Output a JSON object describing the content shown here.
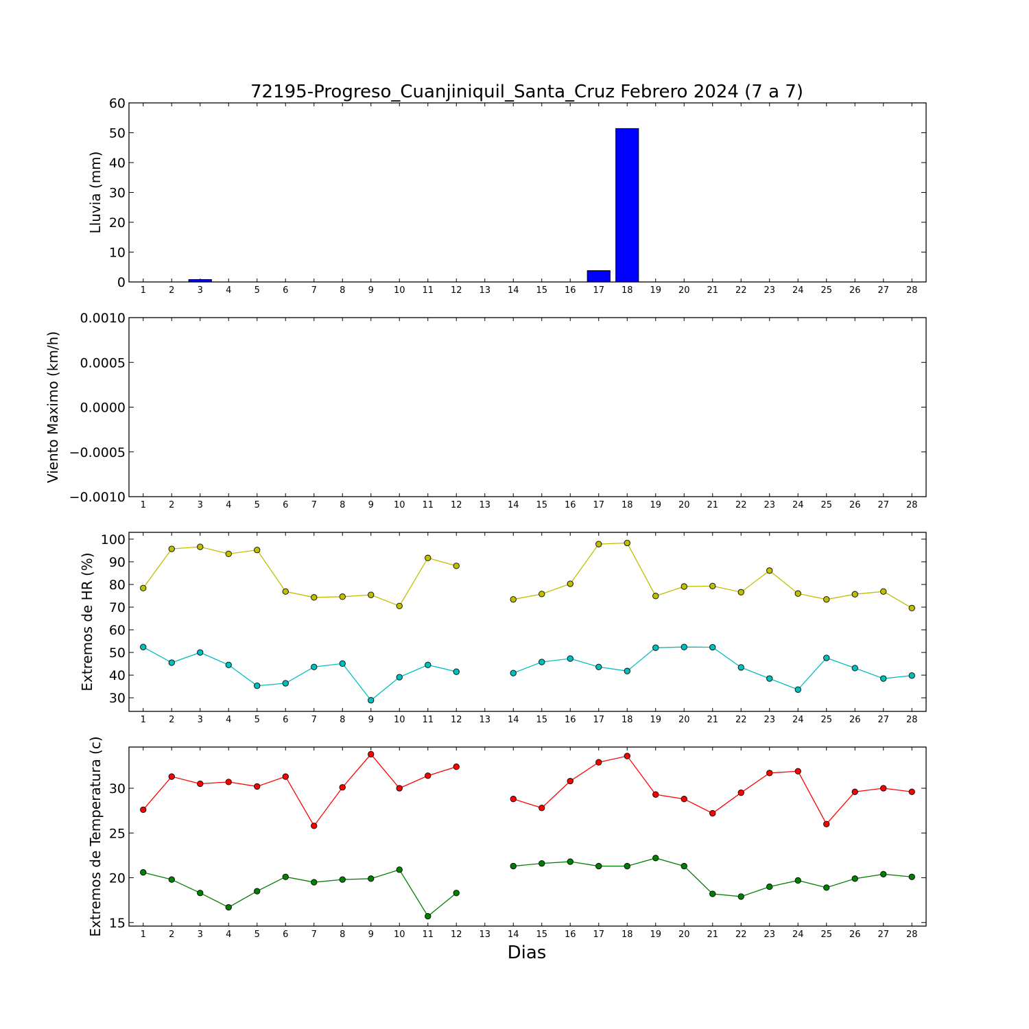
{
  "title": "72195-Progreso_Cuanjiniquil_Santa_Cruz Febrero 2024  (7 a 7)",
  "xlabel": "Dias",
  "chart_data": [
    {
      "type": "bar",
      "ylabel": "Lluvia (mm)",
      "ylim": [
        0,
        60
      ],
      "yticks": [
        "0",
        "10",
        "20",
        "30",
        "40",
        "50",
        "60"
      ],
      "categories": [
        "1",
        "2",
        "3",
        "4",
        "5",
        "6",
        "7",
        "8",
        "9",
        "10",
        "11",
        "12",
        "13",
        "14",
        "15",
        "16",
        "17",
        "18",
        "19",
        "20",
        "21",
        "22",
        "23",
        "24",
        "25",
        "26",
        "27",
        "28"
      ],
      "series": [
        {
          "color": "#0000ff",
          "values": [
            0,
            0,
            0.8,
            0,
            0,
            0,
            0,
            0,
            0,
            0,
            0,
            0,
            0,
            0,
            0,
            0,
            3.8,
            51.4,
            0,
            0,
            0,
            0,
            0,
            0,
            0,
            0,
            0,
            0
          ]
        }
      ],
      "grid": false
    },
    {
      "type": "line",
      "ylabel": "Viento Maximo (km/h)",
      "ylim": [
        -0.001,
        0.001
      ],
      "yticks": [
        "−0.0010",
        "−0.0005",
        "0.0000",
        "0.0005",
        "0.0010"
      ],
      "categories": [
        "1",
        "2",
        "3",
        "4",
        "5",
        "6",
        "7",
        "8",
        "9",
        "10",
        "11",
        "12",
        "13",
        "14",
        "15",
        "16",
        "17",
        "18",
        "19",
        "20",
        "21",
        "22",
        "23",
        "24",
        "25",
        "26",
        "27",
        "28"
      ],
      "series": [],
      "grid": false
    },
    {
      "type": "line",
      "ylabel": "Extremos de HR (%)",
      "ylim": [
        24,
        103
      ],
      "yticks": [
        "30",
        "40",
        "50",
        "60",
        "70",
        "80",
        "90",
        "100"
      ],
      "categories": [
        "1",
        "2",
        "3",
        "4",
        "5",
        "6",
        "7",
        "8",
        "9",
        "10",
        "11",
        "12",
        "13",
        "14",
        "15",
        "16",
        "17",
        "18",
        "19",
        "20",
        "21",
        "22",
        "23",
        "24",
        "25",
        "26",
        "27",
        "28"
      ],
      "series": [
        {
          "color": "#bfbf00",
          "values": [
            78.4,
            95.7,
            96.6,
            93.5,
            95.2,
            76.9,
            74.3,
            74.6,
            75.4,
            70.5,
            91.7,
            88.2,
            null,
            73.4,
            75.8,
            80.3,
            97.8,
            98.3,
            74.9,
            79.1,
            79.3,
            76.6,
            86.1,
            76.0,
            73.4,
            75.7,
            76.9,
            69.6
          ]
        },
        {
          "color": "#00bfbf",
          "values": [
            52.4,
            45.5,
            50.0,
            44.5,
            35.3,
            36.4,
            43.6,
            45.1,
            28.9,
            39.1,
            44.5,
            41.5,
            null,
            40.9,
            45.8,
            47.3,
            43.6,
            41.8,
            52.1,
            52.4,
            52.3,
            43.4,
            38.5,
            33.6,
            47.6,
            43.1,
            38.5,
            39.8
          ]
        }
      ],
      "grid": false
    },
    {
      "type": "line",
      "ylabel": "Extremos de Temperatura (c)",
      "ylim": [
        14.6,
        34.6
      ],
      "yticks": [
        "15",
        "20",
        "25",
        "30"
      ],
      "categories": [
        "1",
        "2",
        "3",
        "4",
        "5",
        "6",
        "7",
        "8",
        "9",
        "10",
        "11",
        "12",
        "13",
        "14",
        "15",
        "16",
        "17",
        "18",
        "19",
        "20",
        "21",
        "22",
        "23",
        "24",
        "25",
        "26",
        "27",
        "28"
      ],
      "series": [
        {
          "color": "#ff0000",
          "values": [
            27.6,
            31.3,
            30.5,
            30.7,
            30.2,
            31.3,
            25.8,
            30.1,
            33.8,
            30.0,
            31.4,
            32.4,
            null,
            28.8,
            27.8,
            30.8,
            32.9,
            33.6,
            29.3,
            28.8,
            27.2,
            29.5,
            31.7,
            31.9,
            26.0,
            29.6,
            30.0,
            29.6
          ]
        },
        {
          "color": "#008000",
          "values": [
            20.6,
            19.8,
            18.3,
            16.7,
            18.5,
            20.1,
            19.5,
            19.8,
            19.9,
            20.9,
            15.7,
            18.3,
            null,
            21.3,
            21.6,
            21.8,
            21.3,
            21.3,
            22.2,
            21.3,
            18.2,
            17.9,
            19.0,
            19.7,
            18.9,
            19.9,
            20.4,
            20.1
          ]
        }
      ],
      "grid": false
    }
  ]
}
